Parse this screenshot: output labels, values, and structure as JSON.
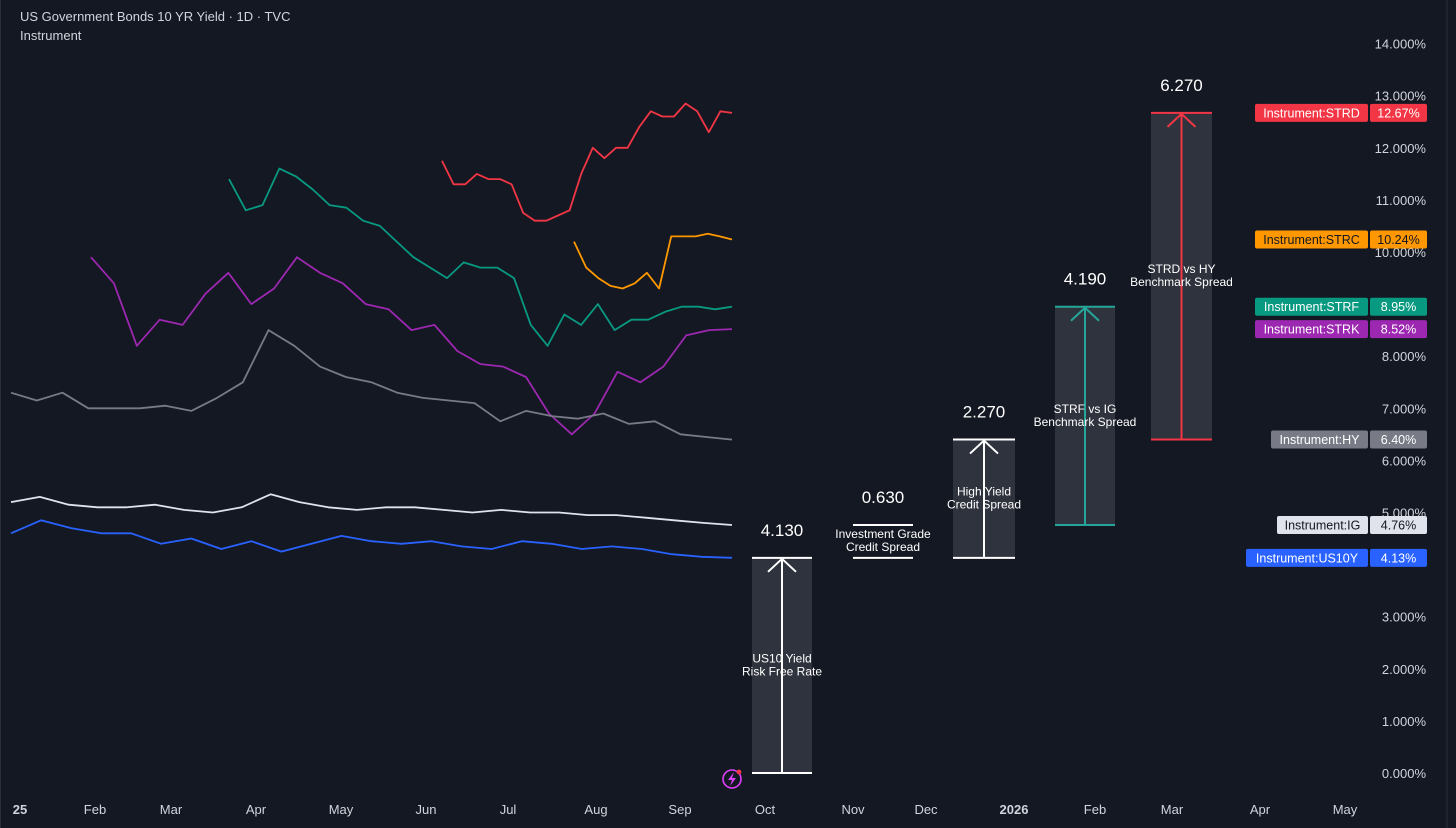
{
  "header": {
    "title": "US Government Bonds 10 YR Yield · 1D · TVC",
    "subtitle": "Instrument"
  },
  "chart_data": {
    "type": "line",
    "title": "US Government Bonds 10 YR Yield · 1D · TVC",
    "ylim": [
      0,
      14
    ],
    "y_ticks": [
      "14.000%",
      "13.000%",
      "12.000%",
      "11.000%",
      "10.000%",
      "8.000%",
      "7.000%",
      "6.000%",
      "5.000%",
      "3.000%",
      "2.000%",
      "1.000%",
      "0.000%"
    ],
    "x_ticks": [
      {
        "label": "25",
        "bold": true
      },
      {
        "label": "Feb"
      },
      {
        "label": "Mar"
      },
      {
        "label": "Apr"
      },
      {
        "label": "May"
      },
      {
        "label": "Jun"
      },
      {
        "label": "Jul"
      },
      {
        "label": "Aug"
      },
      {
        "label": "Sep"
      },
      {
        "label": "Oct"
      },
      {
        "label": "Nov"
      },
      {
        "label": "Dec"
      },
      {
        "label": "2026",
        "bold": true
      },
      {
        "label": "Feb"
      },
      {
        "label": "Mar"
      },
      {
        "label": "Apr"
      },
      {
        "label": "May"
      }
    ],
    "series": [
      {
        "name": "Instrument:STRD",
        "color": "#f23645",
        "last": "12.67%",
        "values": [
          11.75,
          11.3,
          11.3,
          11.5,
          11.4,
          11.4,
          11.3,
          10.75,
          10.6,
          10.6,
          10.7,
          10.8,
          11.5,
          12.0,
          11.8,
          12.0,
          12.0,
          12.4,
          12.7,
          12.6,
          12.6,
          12.85,
          12.7,
          12.3,
          12.7,
          12.67
        ]
      },
      {
        "name": "Instrument:STRC",
        "color": "#ff9800",
        "last": "10.24%",
        "values": [
          10.2,
          9.7,
          9.5,
          9.35,
          9.3,
          9.4,
          9.6,
          9.3,
          10.3,
          10.3,
          10.3,
          10.35,
          10.3,
          10.24
        ]
      },
      {
        "name": "Instrument:STRF",
        "color": "#089981",
        "last": "8.95%",
        "values": [
          11.4,
          10.8,
          10.9,
          11.6,
          11.45,
          11.2,
          10.9,
          10.85,
          10.6,
          10.5,
          10.2,
          9.9,
          9.7,
          9.5,
          9.8,
          9.7,
          9.7,
          9.5,
          8.6,
          8.2,
          8.8,
          8.6,
          9.0,
          8.5,
          8.7,
          8.7,
          8.85,
          8.95,
          8.95,
          8.9,
          8.95
        ]
      },
      {
        "name": "Instrument:STRK",
        "color": "#9c27b0",
        "last": "8.52%",
        "values": [
          9.9,
          9.4,
          8.2,
          8.7,
          8.6,
          9.2,
          9.6,
          9.0,
          9.3,
          9.9,
          9.6,
          9.4,
          9.0,
          8.9,
          8.5,
          8.6,
          8.1,
          7.85,
          7.8,
          7.6,
          6.9,
          6.5,
          6.9,
          7.7,
          7.5,
          7.8,
          8.4,
          8.5,
          8.52
        ]
      },
      {
        "name": "Instrument:HY",
        "color": "#787b86",
        "last": "6.40%",
        "values": [
          7.3,
          7.15,
          7.3,
          7.0,
          7.0,
          7.0,
          7.05,
          6.95,
          7.2,
          7.5,
          8.5,
          8.2,
          7.8,
          7.6,
          7.5,
          7.3,
          7.2,
          7.15,
          7.1,
          6.75,
          6.95,
          6.85,
          6.8,
          6.9,
          6.7,
          6.75,
          6.5,
          6.45,
          6.4
        ]
      },
      {
        "name": "Instrument:IG",
        "color": "#e0e3eb",
        "last": "4.76%",
        "values": [
          5.2,
          5.3,
          5.15,
          5.1,
          5.1,
          5.15,
          5.05,
          5.0,
          5.1,
          5.35,
          5.2,
          5.1,
          5.05,
          5.1,
          5.1,
          5.05,
          5.0,
          5.05,
          5.0,
          5.0,
          4.95,
          4.95,
          4.9,
          4.85,
          4.8,
          4.76
        ]
      },
      {
        "name": "Instrument:US10Y",
        "color": "#2962ff",
        "last": "4.13%",
        "values": [
          4.6,
          4.85,
          4.7,
          4.6,
          4.6,
          4.4,
          4.5,
          4.3,
          4.45,
          4.25,
          4.4,
          4.55,
          4.45,
          4.4,
          4.45,
          4.35,
          4.3,
          4.45,
          4.4,
          4.3,
          4.35,
          4.3,
          4.2,
          4.15,
          4.13
        ]
      }
    ],
    "annotations": [
      {
        "value": "4.130",
        "label1": "US10 Yield",
        "label2": "Risk Free Rate",
        "bottom": 0,
        "top": 4.13,
        "color": "#ffffff"
      },
      {
        "value": "0.630",
        "label1": "Investment Grade",
        "label2": "Credit Spread",
        "bottom": 4.13,
        "top": 4.76,
        "color": "#ffffff"
      },
      {
        "value": "2.270",
        "label1": "High Yield",
        "label2": "Credit Spread",
        "bottom": 4.13,
        "top": 6.4,
        "color": "#ffffff"
      },
      {
        "value": "4.190",
        "label1": "STRF vs IG",
        "label2": "Benchmark Spread",
        "bottom": 4.76,
        "top": 8.95,
        "color": "#26a69a"
      },
      {
        "value": "6.270",
        "label1": "STRD vs HY",
        "label2": "Benchmark Spread",
        "bottom": 6.4,
        "top": 12.67,
        "color": "#f23645"
      }
    ]
  }
}
